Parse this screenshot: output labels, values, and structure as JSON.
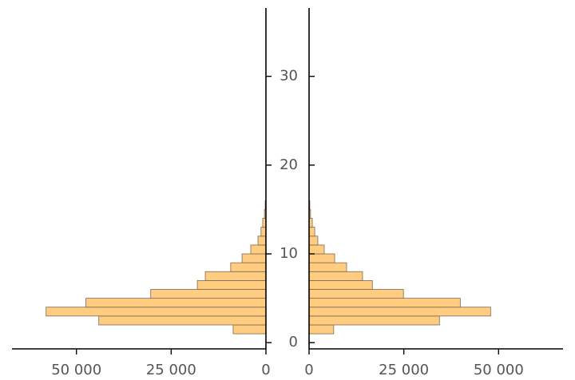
{
  "chart_data": [
    {
      "type": "histogram",
      "orientation": "horizontal",
      "color": "#ffcc80",
      "edgecolor": "#7a6a55",
      "bins": [
        1,
        2,
        3,
        4,
        5,
        6,
        7,
        8,
        9,
        10,
        11,
        12,
        13,
        14,
        15,
        16
      ],
      "values": [
        8650,
        44100,
        58000,
        47500,
        30400,
        18100,
        16000,
        9300,
        6300,
        4000,
        2100,
        1300,
        850,
        400,
        200
      ],
      "xlim": [
        67000,
        0
      ],
      "xticks": [
        {
          "value": 50000,
          "label": "50 000"
        },
        {
          "value": 25000,
          "label": "25 000"
        },
        0
      ],
      "ylim": [
        -0.7,
        37.7
      ],
      "yticks": [
        0,
        10,
        20,
        30
      ]
    },
    {
      "type": "histogram",
      "orientation": "horizontal",
      "color": "#ffcc80",
      "edgecolor": "#7a6a55",
      "bins": [
        1,
        2,
        3,
        4,
        5,
        6,
        7,
        8,
        9,
        10,
        11,
        12,
        13,
        14,
        15,
        16
      ],
      "values": [
        6500,
        34400,
        47900,
        39900,
        24900,
        16700,
        14100,
        9900,
        6750,
        4000,
        2300,
        1500,
        850,
        400,
        200
      ],
      "xlim": [
        0,
        67000
      ],
      "xticks": [
        0,
        {
          "value": 25000,
          "label": "25 000"
        },
        {
          "value": 50000,
          "label": "50 000"
        }
      ],
      "ylim": [
        -0.7,
        37.7
      ],
      "yticks": [
        0,
        10,
        20,
        30
      ]
    }
  ]
}
